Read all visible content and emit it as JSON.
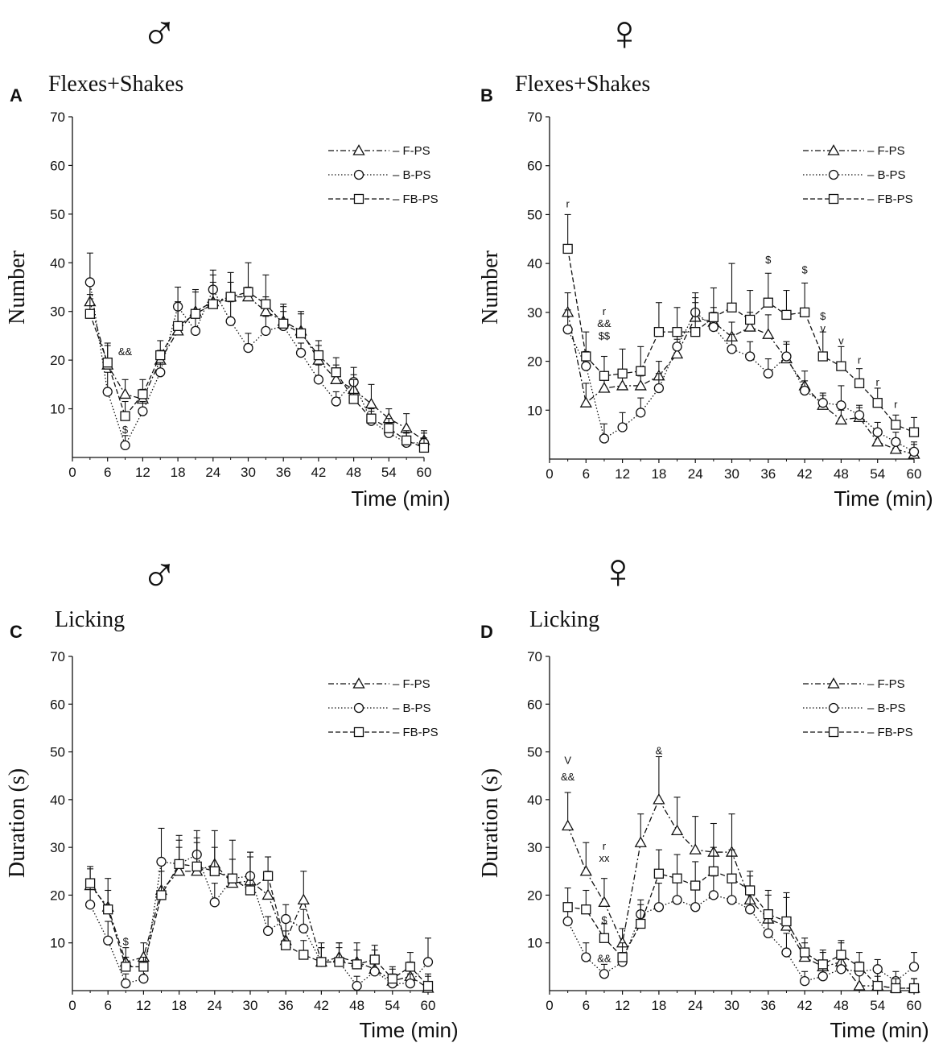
{
  "colors": {
    "ink": "#111111",
    "background": "#ffffff"
  },
  "chart_data": [
    {
      "id": "A",
      "type": "line",
      "panel_letter": "A",
      "sex_symbol": "♂",
      "title": "Flexes+Shakes",
      "ylabel": "Number",
      "xlabel": "Time (min)",
      "ylim": [
        0,
        70
      ],
      "xlim": [
        0,
        60
      ],
      "yticks": [
        "70",
        "60",
        "50",
        "40",
        "30",
        "20",
        "10"
      ],
      "xticks": [
        "0",
        "6",
        "12",
        "18",
        "24",
        "30",
        "36",
        "42",
        "48",
        "54",
        "60"
      ],
      "legend": [
        {
          "label": "– F-PS",
          "marker": "triangle",
          "dash": "dashdot"
        },
        {
          "label": "– B-PS",
          "marker": "circle",
          "dash": "dotted"
        },
        {
          "label": "– FB-PS",
          "marker": "square",
          "dash": "dashed"
        }
      ],
      "x": [
        3,
        6,
        9,
        12,
        15,
        18,
        21,
        24,
        27,
        30,
        33,
        36,
        39,
        42,
        45,
        48,
        51,
        54,
        57,
        60
      ],
      "series": [
        {
          "name": "F-PS",
          "values": [
            32,
            19,
            13,
            12,
            20,
            26,
            30,
            32,
            33,
            33,
            30,
            28,
            26,
            20,
            16,
            14,
            11,
            8,
            6,
            3.5
          ],
          "errors": [
            4,
            4,
            3,
            2,
            2,
            5,
            4,
            4,
            3,
            2,
            3,
            3,
            4,
            3,
            3,
            3,
            4,
            2,
            3,
            2
          ]
        },
        {
          "name": "B-PS",
          "values": [
            36,
            13.5,
            2.5,
            9.5,
            17.5,
            31,
            26,
            34.5,
            28,
            22.5,
            26,
            27,
            21.5,
            16,
            11.5,
            15.5,
            7.5,
            5,
            3,
            3
          ],
          "errors": [
            6,
            4,
            2,
            2,
            2,
            4,
            4,
            3,
            4,
            3,
            3,
            3,
            2,
            3,
            2,
            3,
            2,
            2,
            2,
            2
          ]
        },
        {
          "name": "FB-PS",
          "values": [
            29.5,
            19.5,
            8.5,
            13,
            21,
            27,
            29.5,
            31.5,
            33,
            34,
            31.5,
            27.5,
            25.5,
            21,
            17.5,
            12,
            8,
            6,
            3.5,
            2
          ],
          "errors": [
            4,
            4,
            3,
            3,
            3,
            5,
            5,
            7,
            5,
            6,
            6,
            4,
            4,
            3,
            3,
            4,
            2,
            2,
            2,
            2
          ]
        }
      ],
      "annotations": [
        {
          "x": 9,
          "y": 21,
          "text": "&&"
        },
        {
          "x": 9,
          "y": 5,
          "text": "$"
        }
      ]
    },
    {
      "id": "B",
      "type": "line",
      "panel_letter": "B",
      "sex_symbol": "♀",
      "title": "Flexes+Shakes",
      "ylabel": "Number",
      "xlabel": "Time (min)",
      "ylim": [
        0,
        70
      ],
      "xlim": [
        0,
        60
      ],
      "yticks": [
        "70",
        "60",
        "50",
        "40",
        "30",
        "20",
        "10"
      ],
      "xticks": [
        "0",
        "6",
        "12",
        "18",
        "24",
        "30",
        "36",
        "42",
        "48",
        "54",
        "60"
      ],
      "legend": [
        {
          "label": "– F-PS",
          "marker": "triangle",
          "dash": "dashdot"
        },
        {
          "label": "– B-PS",
          "marker": "circle",
          "dash": "dotted"
        },
        {
          "label": "– FB-PS",
          "marker": "square",
          "dash": "dashed"
        }
      ],
      "x": [
        3,
        6,
        9,
        12,
        15,
        18,
        21,
        24,
        27,
        30,
        33,
        36,
        39,
        42,
        45,
        48,
        51,
        54,
        57,
        60
      ],
      "series": [
        {
          "name": "F-PS",
          "values": [
            30,
            11.5,
            14.5,
            15,
            15,
            17,
            21.5,
            29,
            28,
            25,
            27,
            25.5,
            20.5,
            15,
            11,
            8,
            8.5,
            3.5,
            2,
            1
          ],
          "errors": [
            4,
            4,
            2,
            2,
            2,
            3,
            3,
            3,
            3,
            3,
            3,
            4,
            3,
            3,
            2,
            2,
            2,
            2,
            2,
            2
          ]
        },
        {
          "name": "B-PS",
          "values": [
            26.5,
            19,
            4.2,
            6.5,
            9.5,
            14.5,
            23,
            30,
            27,
            22.5,
            21,
            17.5,
            21,
            14,
            11.5,
            11,
            9,
            5.5,
            3.5,
            1.5
          ],
          "errors": [
            4,
            3,
            3,
            3,
            3,
            3,
            3,
            3,
            3,
            3,
            3,
            3,
            3,
            2,
            2,
            4,
            2,
            2,
            2,
            2
          ]
        },
        {
          "name": "FB-PS",
          "values": [
            43,
            21,
            17,
            17.5,
            18,
            26,
            26,
            26,
            29,
            31,
            28.5,
            32,
            29.5,
            30,
            21,
            19,
            15.5,
            11.5,
            7,
            5.5
          ],
          "errors": [
            7,
            5,
            4,
            5,
            5,
            6,
            5,
            8,
            6,
            9,
            6,
            6,
            5,
            6,
            5,
            4,
            3,
            3,
            2,
            3
          ]
        }
      ],
      "annotations": [
        {
          "x": 3,
          "y": 51.5,
          "text": "r"
        },
        {
          "x": 9,
          "y": 29.5,
          "text": "r"
        },
        {
          "x": 9,
          "y": 27,
          "text": "&&"
        },
        {
          "x": 9,
          "y": 24.5,
          "text": "$$"
        },
        {
          "x": 36,
          "y": 40,
          "text": "$"
        },
        {
          "x": 42,
          "y": 38,
          "text": "$"
        },
        {
          "x": 45,
          "y": 28.5,
          "text": "$"
        },
        {
          "x": 45,
          "y": 26,
          "text": "v"
        },
        {
          "x": 48,
          "y": 23.5,
          "text": "v"
        },
        {
          "x": 51,
          "y": 19.5,
          "text": "r"
        },
        {
          "x": 54,
          "y": 15,
          "text": "r"
        },
        {
          "x": 57,
          "y": 10.5,
          "text": "r"
        }
      ]
    },
    {
      "id": "C",
      "type": "line",
      "panel_letter": "C",
      "sex_symbol": "♂",
      "title": "Licking",
      "ylabel": "Duration (s)",
      "xlabel": "Time (min)",
      "ylim": [
        0,
        70
      ],
      "xlim": [
        0,
        60
      ],
      "yticks": [
        "70",
        "60",
        "50",
        "40",
        "30",
        "20",
        "10"
      ],
      "xticks": [
        "0",
        "6",
        "12",
        "18",
        "24",
        "30",
        "36",
        "42",
        "48",
        "54",
        "60"
      ],
      "legend": [
        {
          "label": "– F-PS",
          "marker": "triangle",
          "dash": "dashdot"
        },
        {
          "label": "– B-PS",
          "marker": "circle",
          "dash": "dotted"
        },
        {
          "label": "– FB-PS",
          "marker": "square",
          "dash": "dashed"
        }
      ],
      "x": [
        3,
        6,
        9,
        12,
        15,
        18,
        21,
        24,
        27,
        30,
        33,
        36,
        39,
        42,
        45,
        48,
        51,
        54,
        57,
        60
      ],
      "series": [
        {
          "name": "F-PS",
          "values": [
            22,
            17.5,
            6,
            7,
            21,
            25,
            25,
            26.5,
            22.5,
            23,
            20,
            10.5,
            19,
            6,
            7,
            6,
            4.5,
            2,
            3,
            0.5
          ],
          "errors": [
            4,
            6,
            3,
            3,
            6,
            5,
            6,
            7,
            5,
            6,
            5,
            4,
            6,
            4,
            3,
            4,
            4,
            3,
            3,
            3
          ]
        },
        {
          "name": "B-PS",
          "values": [
            18,
            10.5,
            1.5,
            2.5,
            27,
            26.5,
            28.5,
            18.5,
            23.5,
            24,
            12.5,
            15,
            13,
            6,
            6,
            1,
            4,
            1.5,
            1.5,
            6
          ],
          "errors": [
            4,
            4,
            2,
            2,
            7,
            5,
            5,
            4,
            4,
            5,
            3,
            3,
            4,
            3,
            3,
            2,
            3,
            2,
            2,
            5
          ]
        },
        {
          "name": "FB-PS",
          "values": [
            22.5,
            17,
            5,
            5,
            20,
            26.5,
            26,
            25,
            23.5,
            21,
            24,
            9.5,
            7.5,
            6,
            6,
            5.5,
            6.5,
            2.5,
            5,
            1
          ],
          "errors": [
            3,
            4,
            2,
            2,
            5,
            6,
            6,
            5,
            8,
            7,
            4,
            3,
            3,
            3,
            4,
            3,
            3,
            2,
            3,
            2
          ]
        }
      ],
      "annotations": [
        {
          "x": 9,
          "y": 9.5,
          "text": "$"
        }
      ]
    },
    {
      "id": "D",
      "type": "line",
      "panel_letter": "D",
      "sex_symbol": "♀",
      "title": "Licking",
      "ylabel": "Duration (s)",
      "xlabel": "Time (min)",
      "ylim": [
        0,
        70
      ],
      "xlim": [
        0,
        60
      ],
      "yticks": [
        "70",
        "60",
        "50",
        "40",
        "30",
        "20",
        "10"
      ],
      "xticks": [
        "0",
        "6",
        "12",
        "18",
        "24",
        "30",
        "36",
        "42",
        "48",
        "54",
        "60"
      ],
      "legend": [
        {
          "label": "– F-PS",
          "marker": "triangle",
          "dash": "dashdot"
        },
        {
          "label": "– B-PS",
          "marker": "circle",
          "dash": "dotted"
        },
        {
          "label": "– FB-PS",
          "marker": "square",
          "dash": "dashed"
        }
      ],
      "x": [
        3,
        6,
        9,
        12,
        15,
        18,
        21,
        24,
        27,
        30,
        33,
        36,
        39,
        42,
        45,
        48,
        51,
        54,
        57,
        60
      ],
      "series": [
        {
          "name": "F-PS",
          "values": [
            34.5,
            25,
            18.5,
            10,
            31,
            40,
            33.5,
            29.5,
            29,
            29,
            19,
            15,
            13.5,
            7,
            5,
            6,
            1,
            1,
            0.5,
            0.5
          ],
          "errors": [
            7,
            6,
            5,
            3,
            6,
            9,
            7,
            7,
            6,
            8,
            5,
            5,
            6,
            3,
            3,
            4,
            3,
            3,
            2,
            2
          ]
        },
        {
          "name": "B-PS",
          "values": [
            14.5,
            7,
            3.5,
            6,
            16,
            17.5,
            19,
            17.5,
            20,
            19,
            17,
            12,
            8,
            2,
            3,
            4.5,
            4,
            4.5,
            2,
            5
          ],
          "errors": [
            3,
            3,
            2,
            2,
            3,
            5,
            4,
            4,
            4,
            5,
            4,
            4,
            4,
            2,
            2,
            2,
            2,
            2,
            2,
            3
          ]
        },
        {
          "name": "FB-PS",
          "values": [
            17.5,
            17,
            11,
            7,
            14,
            24.5,
            23.5,
            22,
            25,
            23.5,
            21,
            16,
            14.5,
            8,
            5.5,
            7.5,
            5,
            1,
            0.5,
            0.5
          ],
          "errors": [
            4,
            4,
            3,
            3,
            4,
            5,
            5,
            5,
            5,
            6,
            4,
            5,
            6,
            3,
            3,
            3,
            3,
            2,
            2,
            2
          ]
        }
      ],
      "annotations": [
        {
          "x": 3,
          "y": 47.5,
          "text": "V"
        },
        {
          "x": 3,
          "y": 44,
          "text": "&&"
        },
        {
          "x": 9,
          "y": 29.5,
          "text": "r"
        },
        {
          "x": 9,
          "y": 27,
          "text": "xx"
        },
        {
          "x": 9,
          "y": 14,
          "text": "$"
        },
        {
          "x": 9,
          "y": 6,
          "text": "&&"
        },
        {
          "x": 18,
          "y": 49.5,
          "text": "&"
        }
      ]
    }
  ]
}
